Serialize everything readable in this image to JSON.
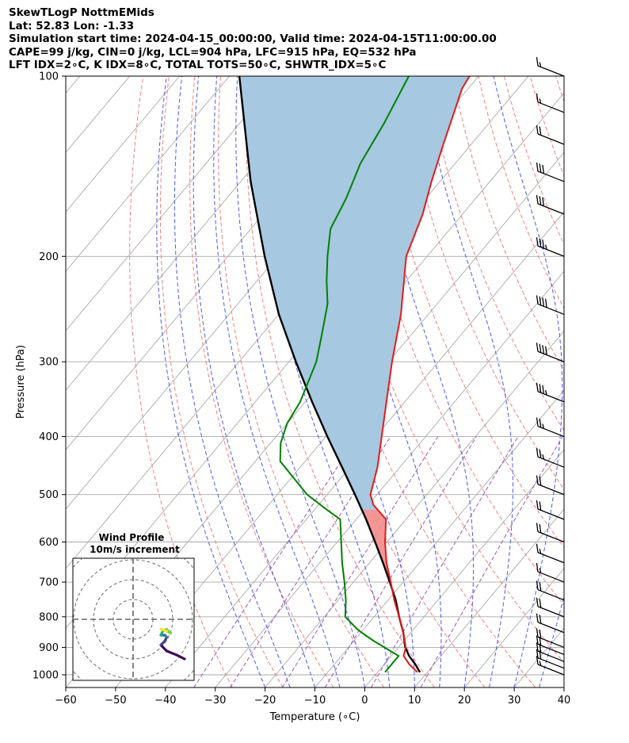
{
  "header": {
    "line1": "SkewTLogP NottmEMids",
    "line2": "Lat: 52.83   Lon: -1.33",
    "line3": "Simulation start time: 2024-04-15_00:00:00, Valid time: 2024-04-15T11:00:00.00",
    "line4": "CAPE=99 j/kg, CIN=0 j/kg, LCL=904 hPa, LFC=915 hPa, EQ=532 hPa",
    "line5": "LFT IDX=2∘C, K IDX=8∘C, TOTAL TOTS=50∘C, SHWTR_IDX=5∘C"
  },
  "chart_data": {
    "type": "skewt-logp",
    "xlabel": "Temperature (∘C)",
    "ylabel": "Pressure (hPa)",
    "xlim": [
      -60,
      40
    ],
    "ylim": [
      1050,
      100
    ],
    "x_ticks": [
      "−60",
      "−50",
      "−40",
      "−30",
      "−20",
      "−10",
      "0",
      "10",
      "20",
      "30",
      "40"
    ],
    "x_tick_values": [
      -60,
      -50,
      -40,
      -30,
      -20,
      -10,
      0,
      10,
      20,
      30,
      40
    ],
    "y_ticks": [
      "100",
      "200",
      "300",
      "400",
      "500",
      "600",
      "700",
      "800",
      "900",
      "1000"
    ],
    "y_tick_values": [
      100,
      200,
      300,
      400,
      500,
      600,
      700,
      800,
      900,
      1000
    ],
    "grid": true,
    "colors": {
      "temperature": "#e41a1c",
      "dewpoint": "#008000",
      "parcel": "#000000",
      "cape_fill": "#a6c8e0",
      "dry_adiabat": "#f08080",
      "moist_adiabat": "#4b5be6",
      "mixing_ratio": "#9b59b6",
      "isotherm": "#aaaaaa"
    },
    "temperature": {
      "p": [
        990,
        960,
        930,
        900,
        850,
        800,
        750,
        700,
        650,
        600,
        550,
        520,
        500,
        450,
        400,
        350,
        300,
        250,
        200,
        170,
        150,
        130,
        115,
        105,
        100
      ],
      "t": [
        8,
        5,
        2.5,
        1.5,
        -1.5,
        -5,
        -8.8,
        -12.5,
        -16.6,
        -20.4,
        -24,
        -29,
        -31.3,
        -34.5,
        -38.8,
        -43.7,
        -49.3,
        -55.5,
        -64.2,
        -68,
        -71.7,
        -75.6,
        -78.8,
        -81.2,
        -81.8
      ]
    },
    "dewpoint": {
      "p": [
        990,
        980,
        930,
        880,
        860,
        840,
        800,
        750,
        700,
        650,
        600,
        550,
        530,
        500,
        440,
        410,
        380,
        350,
        300,
        270,
        240,
        220,
        200,
        180,
        160,
        140,
        120,
        100
      ],
      "td": [
        1.5,
        1.5,
        1.5,
        -5.7,
        -8.5,
        -11.2,
        -15.8,
        -18.5,
        -21.8,
        -25.5,
        -29.2,
        -33.2,
        -37.5,
        -44,
        -55,
        -58,
        -60,
        -61,
        -64.5,
        -68,
        -72,
        -76,
        -80,
        -84,
        -86,
        -89,
        -91,
        -94
      ]
    },
    "parcel": {
      "p": [
        990,
        960,
        930,
        900,
        850,
        800,
        750,
        700,
        650,
        600,
        550,
        500,
        450,
        400,
        350,
        300,
        250,
        200,
        150,
        100
      ],
      "t": [
        8.5,
        6.2,
        3.6,
        1.4,
        -1.5,
        -5,
        -8.5,
        -12.7,
        -17.3,
        -22.4,
        -28,
        -34.4,
        -41.6,
        -49.7,
        -58.6,
        -68.6,
        -80,
        -92.6,
        -108,
        -128
      ]
    },
    "wind_barbs": [
      {
        "p": 1000,
        "speed_kt": 15
      },
      {
        "p": 975,
        "speed_kt": 20
      },
      {
        "p": 950,
        "speed_kt": 20
      },
      {
        "p": 925,
        "speed_kt": 20
      },
      {
        "p": 900,
        "speed_kt": 20
      },
      {
        "p": 850,
        "speed_kt": 20
      },
      {
        "p": 800,
        "speed_kt": 20
      },
      {
        "p": 750,
        "speed_kt": 20
      },
      {
        "p": 700,
        "speed_kt": 15
      },
      {
        "p": 650,
        "speed_kt": 15
      },
      {
        "p": 600,
        "speed_kt": 20
      },
      {
        "p": 550,
        "speed_kt": 20
      },
      {
        "p": 500,
        "speed_kt": 20
      },
      {
        "p": 450,
        "speed_kt": 25
      },
      {
        "p": 400,
        "speed_kt": 25
      },
      {
        "p": 350,
        "speed_kt": 35
      },
      {
        "p": 300,
        "speed_kt": 40
      },
      {
        "p": 250,
        "speed_kt": 40
      },
      {
        "p": 200,
        "speed_kt": 35
      },
      {
        "p": 170,
        "speed_kt": 30
      },
      {
        "p": 150,
        "speed_kt": 30
      },
      {
        "p": 130,
        "speed_kt": 20
      },
      {
        "p": 115,
        "speed_kt": 15
      },
      {
        "p": 100,
        "speed_kt": 15
      }
    ],
    "hodograph": {
      "title_line1": "Wind Profile",
      "title_line2": "10m/s increment",
      "ring_spacing_ms": 10,
      "u": [
        26,
        22,
        17,
        14,
        16,
        17,
        16,
        14,
        15,
        17,
        19,
        17,
        14
      ],
      "v": [
        -20,
        -18,
        -16,
        -13,
        -11,
        -9,
        -8,
        -8,
        -6,
        -5,
        -7,
        -6,
        -5
      ],
      "colors": [
        "#440154",
        "#414487",
        "#2a788e",
        "#22a884",
        "#7ad151",
        "#fde725"
      ]
    }
  }
}
